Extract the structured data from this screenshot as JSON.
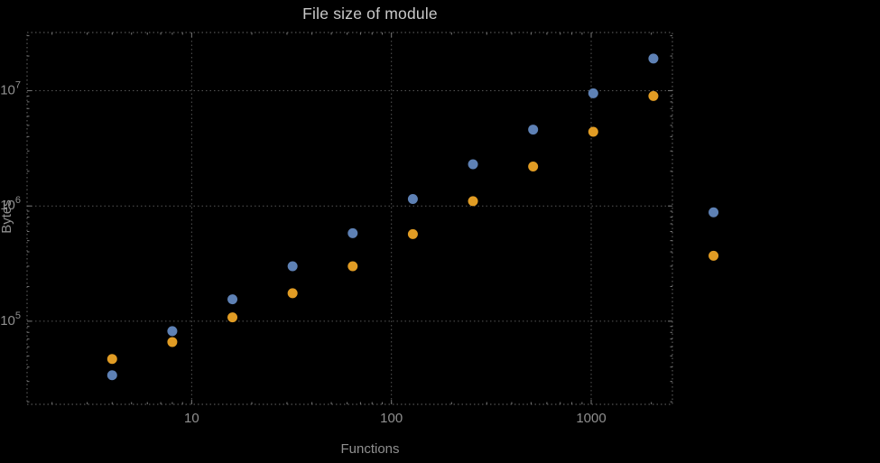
{
  "chart_data": {
    "type": "scatter",
    "title": "File size of module",
    "xlabel": "Functions",
    "ylabel": "Bytes",
    "x_scale": "log",
    "y_scale": "log",
    "xlim": [
      1.5,
      2550
    ],
    "ylim": [
      19000,
      32000000
    ],
    "x_ticks": [
      10,
      100,
      1000
    ],
    "x_tick_labels": [
      "10",
      "100",
      "1000"
    ],
    "y_ticks": [
      100000,
      1000000,
      10000000
    ],
    "y_tick_labels": [
      "10^5",
      "10^6",
      "10^7"
    ],
    "grid": "dotted",
    "legend_position": "none",
    "frame_color": "#666666",
    "grid_color": "#555555",
    "tick_color": "#777777",
    "label_color": "#8f8f8f",
    "title_color": "#c9c9c9",
    "background_color": "#000000",
    "series": [
      {
        "name": "blue",
        "color": "#5E81B5",
        "points": [
          [
            4,
            34000
          ],
          [
            8,
            82000
          ],
          [
            16,
            155000
          ],
          [
            32,
            300000
          ],
          [
            64,
            580000
          ],
          [
            128,
            1150000
          ],
          [
            256,
            2300000
          ],
          [
            512,
            4600000
          ],
          [
            1024,
            9500000
          ],
          [
            2048,
            19000000
          ],
          [
            4096,
            880000
          ]
        ]
      },
      {
        "name": "orange",
        "color": "#E19C24",
        "points": [
          [
            4,
            47000
          ],
          [
            8,
            66000
          ],
          [
            16,
            108000
          ],
          [
            32,
            175000
          ],
          [
            64,
            300000
          ],
          [
            128,
            570000
          ],
          [
            256,
            1100000
          ],
          [
            512,
            2200000
          ],
          [
            1024,
            4400000
          ],
          [
            2048,
            9000000
          ],
          [
            4096,
            370000
          ]
        ]
      }
    ]
  }
}
